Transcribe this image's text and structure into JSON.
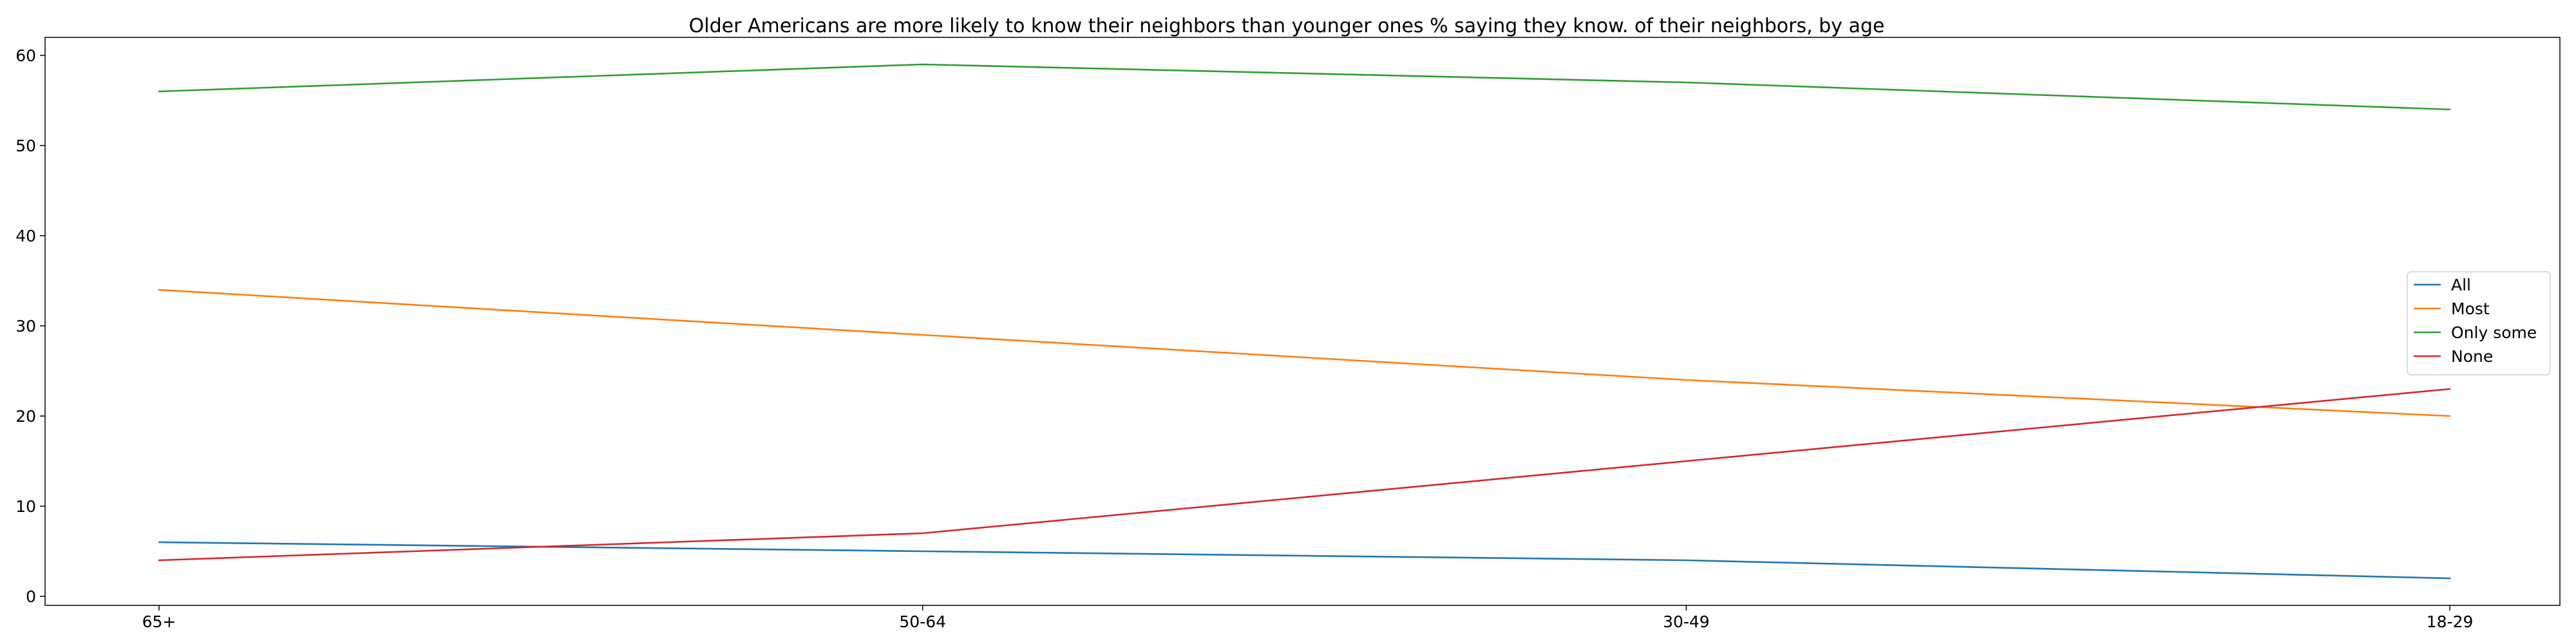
{
  "chart_data": {
    "type": "line",
    "title": "Older Americans are more likely to know their neighbors than younger ones % saying they know. of their neighbors, by age",
    "xlabel": "",
    "ylabel": "",
    "categories": [
      "65+",
      "50-64",
      "30-49",
      "18-29"
    ],
    "ylim": [
      -1,
      62
    ],
    "yticks": [
      0,
      10,
      20,
      30,
      40,
      50,
      60
    ],
    "grid": false,
    "legend_position": "right",
    "series": [
      {
        "name": "All",
        "color": "#1f77b4",
        "values": [
          6,
          5,
          4,
          2
        ]
      },
      {
        "name": "Most",
        "color": "#ff7f0e",
        "values": [
          34,
          29,
          24,
          20
        ]
      },
      {
        "name": "Only some",
        "color": "#2ca02c",
        "values": [
          56,
          59,
          57,
          54
        ]
      },
      {
        "name": "None",
        "color": "#d62728",
        "values": [
          4,
          7,
          15,
          23
        ]
      }
    ]
  }
}
